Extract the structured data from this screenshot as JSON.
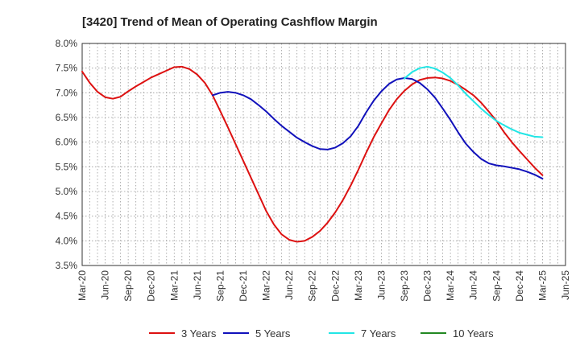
{
  "chart_data": {
    "type": "line",
    "title": "[3420]  Trend of Mean of Operating Cashflow Margin",
    "xlabel": "",
    "ylabel": "",
    "ylim": [
      3.5,
      8.0
    ],
    "y_ticks": [
      3.5,
      4.0,
      4.5,
      5.0,
      5.5,
      6.0,
      6.5,
      7.0,
      7.5,
      8.0
    ],
    "y_tick_labels": [
      "3.5%",
      "4.0%",
      "4.5%",
      "5.0%",
      "5.5%",
      "6.0%",
      "6.5%",
      "7.0%",
      "7.5%",
      "8.0%"
    ],
    "x_tick_labels": [
      "Mar-20",
      "Jun-20",
      "Sep-20",
      "Dec-20",
      "Mar-21",
      "Jun-21",
      "Sep-21",
      "Dec-21",
      "Mar-22",
      "Jun-22",
      "Sep-22",
      "Dec-22",
      "Mar-23",
      "Jun-23",
      "Sep-23",
      "Dec-23",
      "Mar-24",
      "Jun-24",
      "Sep-24",
      "Dec-24",
      "Mar-25",
      "Jun-25"
    ],
    "grid": true,
    "legend_position": "bottom",
    "series": [
      {
        "name": "3 Years",
        "color": "#dd1111",
        "x": [
          "Mar-20",
          "Apr-20",
          "May-20",
          "Jun-20",
          "Jul-20",
          "Aug-20",
          "Sep-20",
          "Oct-20",
          "Nov-20",
          "Dec-20",
          "Jan-21",
          "Feb-21",
          "Mar-21",
          "Apr-21",
          "May-21",
          "Jun-21",
          "Jul-21",
          "Aug-21",
          "Sep-21",
          "Oct-21",
          "Nov-21",
          "Dec-21",
          "Jan-22",
          "Feb-22",
          "Mar-22",
          "Apr-22",
          "May-22",
          "Jun-22",
          "Jul-22",
          "Aug-22",
          "Sep-22",
          "Oct-22",
          "Nov-22",
          "Dec-22",
          "Jan-23",
          "Feb-23",
          "Mar-23",
          "Apr-23",
          "May-23",
          "Jun-23",
          "Jul-23",
          "Aug-23",
          "Sep-23",
          "Oct-23",
          "Nov-23",
          "Dec-23",
          "Jan-24",
          "Feb-24",
          "Mar-24",
          "Apr-24",
          "May-24",
          "Jun-24",
          "Jul-24",
          "Aug-24",
          "Sep-24",
          "Oct-24",
          "Nov-24",
          "Dec-24",
          "Jan-25",
          "Feb-25",
          "Mar-25"
        ],
        "values": [
          7.43,
          7.2,
          7.02,
          6.91,
          6.88,
          6.92,
          7.03,
          7.13,
          7.22,
          7.31,
          7.38,
          7.45,
          7.52,
          7.53,
          7.48,
          7.37,
          7.2,
          6.95,
          6.63,
          6.3,
          5.96,
          5.62,
          5.28,
          4.94,
          4.6,
          4.33,
          4.13,
          4.02,
          3.98,
          4.0,
          4.08,
          4.2,
          4.37,
          4.58,
          4.83,
          5.12,
          5.44,
          5.78,
          6.1,
          6.38,
          6.65,
          6.87,
          7.04,
          7.17,
          7.26,
          7.3,
          7.31,
          7.29,
          7.24,
          7.16,
          7.06,
          6.95,
          6.8,
          6.62,
          6.43,
          6.2,
          6.0,
          5.82,
          5.65,
          5.48,
          5.33
        ]
      },
      {
        "name": "5 Years",
        "color": "#1111bb",
        "x": [
          "Aug-21",
          "Sep-21",
          "Oct-21",
          "Nov-21",
          "Dec-21",
          "Jan-22",
          "Feb-22",
          "Mar-22",
          "Apr-22",
          "May-22",
          "Jun-22",
          "Jul-22",
          "Aug-22",
          "Sep-22",
          "Oct-22",
          "Nov-22",
          "Dec-22",
          "Jan-23",
          "Feb-23",
          "Mar-23",
          "Apr-23",
          "May-23",
          "Jun-23",
          "Jul-23",
          "Aug-23",
          "Sep-23",
          "Oct-23",
          "Nov-23",
          "Dec-23",
          "Jan-24",
          "Feb-24",
          "Mar-24",
          "Apr-24",
          "May-24",
          "Jun-24",
          "Jul-24",
          "Aug-24",
          "Sep-24",
          "Oct-24",
          "Nov-24",
          "Dec-24",
          "Jan-25",
          "Feb-25",
          "Mar-25"
        ],
        "values": [
          6.95,
          7.0,
          7.02,
          7.0,
          6.95,
          6.87,
          6.75,
          6.62,
          6.47,
          6.33,
          6.21,
          6.09,
          6.0,
          5.92,
          5.86,
          5.85,
          5.89,
          5.98,
          6.12,
          6.33,
          6.6,
          6.84,
          7.03,
          7.18,
          7.27,
          7.3,
          7.28,
          7.2,
          7.07,
          6.9,
          6.68,
          6.45,
          6.2,
          5.97,
          5.8,
          5.66,
          5.57,
          5.53,
          5.51,
          5.48,
          5.45,
          5.4,
          5.34,
          5.26
        ]
      },
      {
        "name": "7 Years",
        "color": "#22e6e6",
        "x": [
          "Sep-23",
          "Oct-23",
          "Nov-23",
          "Dec-23",
          "Jan-24",
          "Feb-24",
          "Mar-24",
          "Apr-24",
          "May-24",
          "Jun-24",
          "Jul-24",
          "Aug-24",
          "Sep-24",
          "Oct-24",
          "Nov-24",
          "Dec-24",
          "Jan-25",
          "Feb-25",
          "Mar-25"
        ],
        "values": [
          7.29,
          7.42,
          7.5,
          7.53,
          7.49,
          7.41,
          7.3,
          7.15,
          6.98,
          6.83,
          6.68,
          6.55,
          6.43,
          6.34,
          6.26,
          6.19,
          6.15,
          6.11,
          6.1
        ]
      },
      {
        "name": "10 Years",
        "color": "#228822",
        "x": [],
        "values": []
      }
    ]
  }
}
